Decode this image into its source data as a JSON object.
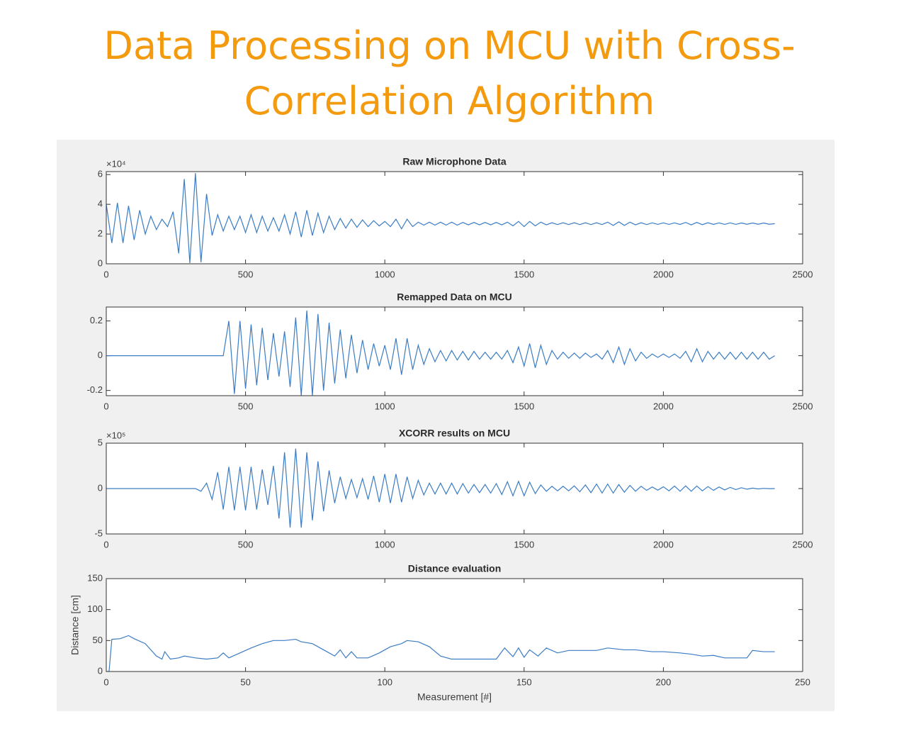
{
  "title_lines": [
    "Data Processing on MCU with Cross-",
    "Correlation Algorithm"
  ],
  "chart_data": [
    {
      "type": "line",
      "title": "Raw Microphone Data",
      "y_scale_label": "×10⁴",
      "xlim": [
        0,
        2500
      ],
      "xticks": [
        0,
        500,
        1000,
        1500,
        2000,
        2500
      ],
      "ylim": [
        0,
        62000
      ],
      "yticks": [
        {
          "value": 0,
          "label": "0"
        },
        {
          "value": 20000,
          "label": "2"
        },
        {
          "value": 40000,
          "label": "4"
        },
        {
          "value": 60000,
          "label": "6"
        }
      ],
      "x": [
        0,
        20,
        40,
        60,
        80,
        100,
        120,
        140,
        160,
        180,
        200,
        220,
        240,
        260,
        280,
        300,
        320,
        340,
        360,
        380,
        400,
        420,
        440,
        460,
        480,
        500,
        520,
        540,
        560,
        580,
        600,
        620,
        640,
        660,
        680,
        700,
        720,
        740,
        760,
        780,
        800,
        820,
        840,
        860,
        880,
        900,
        920,
        940,
        960,
        980,
        1000,
        1020,
        1040,
        1060,
        1080,
        1100,
        1120,
        1140,
        1160,
        1180,
        1200,
        1220,
        1240,
        1260,
        1280,
        1300,
        1320,
        1340,
        1360,
        1380,
        1400,
        1420,
        1440,
        1460,
        1480,
        1500,
        1520,
        1540,
        1560,
        1580,
        1600,
        1620,
        1640,
        1660,
        1680,
        1700,
        1720,
        1740,
        1760,
        1780,
        1800,
        1820,
        1840,
        1860,
        1880,
        1900,
        1920,
        1940,
        1960,
        1980,
        2000,
        2020,
        2040,
        2060,
        2080,
        2100,
        2120,
        2140,
        2160,
        2180,
        2200,
        2220,
        2240,
        2260,
        2280,
        2300,
        2320,
        2340,
        2360,
        2380,
        2400
      ],
      "series": [
        {
          "color": "#3b7cc4",
          "values": [
            40000,
            14000,
            41000,
            14000,
            39000,
            16000,
            36000,
            20000,
            32000,
            23000,
            30000,
            25000,
            35000,
            7000,
            57000,
            500,
            61000,
            1000,
            47000,
            19000,
            33000,
            22000,
            32000,
            23000,
            32000,
            21000,
            33000,
            21000,
            32000,
            22000,
            31000,
            22000,
            33000,
            20000,
            35000,
            18000,
            36000,
            19000,
            34000,
            21000,
            32000,
            23000,
            30500,
            24000,
            30000,
            24500,
            29500,
            25000,
            29000,
            25500,
            28500,
            25000,
            30000,
            23500,
            30000,
            25000,
            28000,
            26000,
            28000,
            26000,
            28000,
            26000,
            28000,
            26000,
            27800,
            26200,
            27800,
            26200,
            27800,
            26200,
            27800,
            26200,
            28000,
            25500,
            28500,
            25000,
            28500,
            25500,
            28000,
            26200,
            27600,
            26400,
            27600,
            26400,
            27600,
            26400,
            27600,
            26400,
            27600,
            26400,
            28000,
            25800,
            28200,
            25800,
            28000,
            26200,
            27600,
            26400,
            27500,
            26500,
            27500,
            26500,
            27500,
            26500,
            27800,
            26200,
            27800,
            26300,
            27600,
            26500,
            27500,
            26500,
            27500,
            26500,
            27400,
            26600,
            27400,
            26600,
            27400,
            26600,
            27000
          ]
        }
      ]
    },
    {
      "type": "line",
      "title": "Remapped Data on MCU",
      "xlim": [
        0,
        2500
      ],
      "xticks": [
        0,
        500,
        1000,
        1500,
        2000,
        2500
      ],
      "ylim": [
        -0.23,
        0.28
      ],
      "yticks": [
        -0.2,
        0,
        0.2
      ],
      "x": [
        0,
        20,
        40,
        60,
        80,
        100,
        120,
        140,
        160,
        180,
        200,
        220,
        240,
        260,
        280,
        300,
        320,
        340,
        360,
        380,
        400,
        420,
        440,
        460,
        480,
        500,
        520,
        540,
        560,
        580,
        600,
        620,
        640,
        660,
        680,
        700,
        720,
        740,
        760,
        780,
        800,
        820,
        840,
        860,
        880,
        900,
        920,
        940,
        960,
        980,
        1000,
        1020,
        1040,
        1060,
        1080,
        1100,
        1120,
        1140,
        1160,
        1180,
        1200,
        1220,
        1240,
        1260,
        1280,
        1300,
        1320,
        1340,
        1360,
        1380,
        1400,
        1420,
        1440,
        1460,
        1480,
        1500,
        1520,
        1540,
        1560,
        1580,
        1600,
        1620,
        1640,
        1660,
        1680,
        1700,
        1720,
        1740,
        1760,
        1780,
        1800,
        1820,
        1840,
        1860,
        1880,
        1900,
        1920,
        1940,
        1960,
        1980,
        2000,
        2020,
        2040,
        2060,
        2080,
        2100,
        2120,
        2140,
        2160,
        2180,
        2200,
        2220,
        2240,
        2260,
        2280,
        2300,
        2320,
        2340,
        2360,
        2380,
        2400
      ],
      "series": [
        {
          "color": "#3b7cc4",
          "values": [
            0,
            0,
            0,
            0,
            0,
            0,
            0,
            0,
            0,
            0,
            0,
            0,
            0,
            0,
            0,
            0,
            0,
            0,
            0,
            0,
            0,
            0,
            0.2,
            -0.22,
            0.2,
            -0.19,
            0.18,
            -0.17,
            0.16,
            -0.14,
            0.13,
            -0.12,
            0.14,
            -0.18,
            0.22,
            -0.23,
            0.26,
            -0.23,
            0.24,
            -0.2,
            0.19,
            -0.16,
            0.15,
            -0.13,
            0.12,
            -0.1,
            0.09,
            -0.08,
            0.07,
            -0.06,
            0.06,
            -0.08,
            0.1,
            -0.11,
            0.1,
            -0.08,
            0.06,
            -0.05,
            0.04,
            -0.035,
            0.03,
            -0.03,
            0.03,
            -0.025,
            0.025,
            -0.025,
            0.025,
            -0.02,
            0.02,
            -0.02,
            0.02,
            -0.02,
            0.03,
            -0.04,
            0.05,
            -0.06,
            0.07,
            -0.07,
            0.06,
            -0.05,
            0.03,
            -0.02,
            0.02,
            -0.015,
            0.015,
            -0.015,
            0.015,
            -0.01,
            0.01,
            -0.02,
            0.03,
            -0.04,
            0.05,
            -0.05,
            0.04,
            -0.03,
            0.02,
            -0.015,
            0.01,
            -0.01,
            0.01,
            -0.01,
            0.01,
            -0.015,
            0.025,
            -0.035,
            0.04,
            -0.035,
            0.025,
            -0.02,
            0.02,
            -0.02,
            0.02,
            -0.02,
            0.02,
            -0.02,
            0.02,
            -0.02,
            0.02,
            -0.02,
            0
          ]
        }
      ]
    },
    {
      "type": "line",
      "title": "XCORR results on MCU",
      "y_scale_label": "×10⁵",
      "xlim": [
        0,
        2500
      ],
      "xticks": [
        0,
        500,
        1000,
        1500,
        2000,
        2500
      ],
      "ylim": [
        -500000,
        500000
      ],
      "yticks": [
        {
          "value": -500000,
          "label": "-5"
        },
        {
          "value": 0,
          "label": "0"
        },
        {
          "value": 500000,
          "label": "5"
        }
      ],
      "x": [
        0,
        20,
        40,
        60,
        80,
        100,
        120,
        140,
        160,
        180,
        200,
        220,
        240,
        260,
        280,
        300,
        320,
        340,
        360,
        380,
        400,
        420,
        440,
        460,
        480,
        500,
        520,
        540,
        560,
        580,
        600,
        620,
        640,
        660,
        680,
        700,
        720,
        740,
        760,
        780,
        800,
        820,
        840,
        860,
        880,
        900,
        920,
        940,
        960,
        980,
        1000,
        1020,
        1040,
        1060,
        1080,
        1100,
        1120,
        1140,
        1160,
        1180,
        1200,
        1220,
        1240,
        1260,
        1280,
        1300,
        1320,
        1340,
        1360,
        1380,
        1400,
        1420,
        1440,
        1460,
        1480,
        1500,
        1520,
        1540,
        1560,
        1580,
        1600,
        1620,
        1640,
        1660,
        1680,
        1700,
        1720,
        1740,
        1760,
        1780,
        1800,
        1820,
        1840,
        1860,
        1880,
        1900,
        1920,
        1940,
        1960,
        1980,
        2000,
        2020,
        2040,
        2060,
        2080,
        2100,
        2120,
        2140,
        2160,
        2180,
        2200,
        2220,
        2240,
        2260,
        2280,
        2300,
        2320,
        2340,
        2360,
        2380,
        2400
      ],
      "series": [
        {
          "color": "#3b7cc4",
          "values": [
            0,
            0,
            0,
            0,
            0,
            0,
            0,
            0,
            0,
            0,
            0,
            0,
            0,
            0,
            0,
            0,
            0,
            -30000,
            60000,
            -120000,
            180000,
            -230000,
            240000,
            -240000,
            240000,
            -240000,
            240000,
            -230000,
            210000,
            -180000,
            250000,
            -330000,
            400000,
            -430000,
            440000,
            -430000,
            400000,
            -350000,
            300000,
            -250000,
            200000,
            -160000,
            130000,
            -110000,
            100000,
            -100000,
            110000,
            -120000,
            140000,
            -150000,
            160000,
            -160000,
            160000,
            -150000,
            130000,
            -110000,
            90000,
            -70000,
            60000,
            -60000,
            60000,
            -60000,
            60000,
            -60000,
            55000,
            -50000,
            45000,
            -45000,
            45000,
            -50000,
            55000,
            -65000,
            75000,
            -80000,
            80000,
            -80000,
            70000,
            -55000,
            40000,
            -30000,
            25000,
            -25000,
            25000,
            -25000,
            30000,
            -35000,
            40000,
            -45000,
            50000,
            -50000,
            50000,
            -50000,
            45000,
            -40000,
            35000,
            -30000,
            25000,
            -20000,
            18000,
            -18000,
            20000,
            -25000,
            28000,
            -30000,
            30000,
            -30000,
            28000,
            -25000,
            22000,
            -20000,
            18000,
            -15000,
            13000,
            -11000,
            9000,
            -7000,
            5000,
            -4000,
            2500,
            -1000,
            0
          ]
        }
      ]
    },
    {
      "type": "line",
      "title": "Distance evaluation",
      "xlabel": "Measurement [#]",
      "ylabel": "Distance [cm]",
      "xlim": [
        0,
        250
      ],
      "xticks": [
        0,
        50,
        100,
        150,
        200,
        250
      ],
      "ylim": [
        0,
        150
      ],
      "yticks": [
        0,
        50,
        100,
        150
      ],
      "x": [
        0,
        1,
        2,
        5,
        8,
        10,
        14,
        18,
        20,
        21,
        23,
        26,
        28,
        32,
        36,
        40,
        42,
        44,
        48,
        52,
        56,
        60,
        64,
        68,
        70,
        74,
        78,
        82,
        84,
        86,
        88,
        90,
        94,
        98,
        102,
        106,
        108,
        112,
        116,
        120,
        124,
        130,
        136,
        140,
        143,
        146,
        148,
        150,
        152,
        155,
        158,
        162,
        166,
        170,
        176,
        180,
        186,
        190,
        196,
        200,
        206,
        210,
        214,
        218,
        222,
        226,
        230,
        232,
        236,
        240
      ],
      "series": [
        {
          "color": "#3b7cc4",
          "values": [
            0,
            0,
            52,
            53,
            58,
            53,
            45,
            25,
            20,
            32,
            20,
            22,
            25,
            22,
            20,
            22,
            30,
            22,
            30,
            38,
            45,
            50,
            50,
            52,
            48,
            45,
            35,
            25,
            35,
            22,
            32,
            22,
            22,
            30,
            40,
            45,
            50,
            48,
            40,
            25,
            20,
            20,
            20,
            20,
            38,
            24,
            38,
            23,
            35,
            25,
            38,
            30,
            34,
            34,
            34,
            38,
            35,
            35,
            32,
            32,
            30,
            28,
            25,
            26,
            22,
            22,
            22,
            34,
            32,
            32
          ]
        }
      ]
    }
  ]
}
